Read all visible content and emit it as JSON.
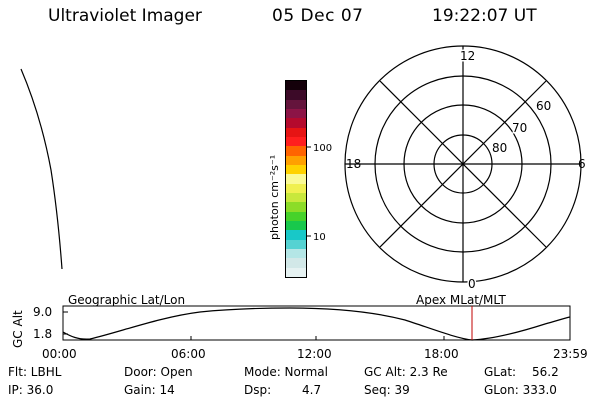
{
  "header": {
    "title": "Ultraviolet Imager",
    "date": "05 Dec 07",
    "time": "19:22:07 UT"
  },
  "colorbar": {
    "unit_label": "photon cm⁻²s⁻¹",
    "tick_100": "100",
    "tick_10": "10",
    "colors": [
      "#e6f2f2",
      "#d2e8e8",
      "#b4e6e6",
      "#55d2d2",
      "#18c8c8",
      "#18c84c",
      "#46d22a",
      "#8cdc28",
      "#c8e83c",
      "#f0f050",
      "#fafa96",
      "#ffd200",
      "#ffa000",
      "#ff6400",
      "#ff1e1e",
      "#e61414",
      "#b40a2d",
      "#8c1446",
      "#64143c",
      "#3c0a28",
      "#14000a"
    ]
  },
  "polar_plot": {
    "label_12": "12",
    "label_0": "0",
    "label_18": "18",
    "label_6": "6",
    "label_60": "60",
    "label_70": "70",
    "label_80": "80"
  },
  "altitude_plot": {
    "left_title": "Geographic Lat/Lon",
    "right_title": "Apex MLat/MLT",
    "ylabel": "GC Alt",
    "ytick_top": "9.0",
    "ytick_bottom": "1.8",
    "xticks": [
      "00:00",
      "06:00",
      "12:00",
      "18:00",
      "23:59"
    ],
    "marker_color": "#c00000"
  },
  "info": {
    "flt": "Flt: LBHL",
    "ip": "IP: 36.0",
    "door": "Door: Open",
    "gain": "Gain: 14",
    "mode": "Mode: Normal",
    "dsp": "Dsp:",
    "dsp_value": "4.7",
    "gc_alt": "GC Alt: 2.3 Re",
    "seq": "Seq: 39",
    "glat": "GLat:",
    "glat_value": "56.2",
    "glon": "GLon: 333.0"
  }
}
